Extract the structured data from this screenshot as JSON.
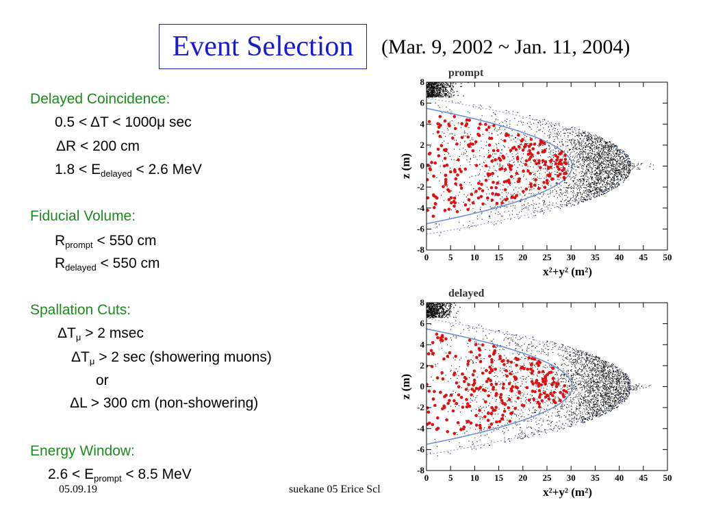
{
  "slide": {
    "title": "Event Selection",
    "date_range": "(Mar. 9, 2002 ~ Jan. 11, 2004)",
    "footer_date": "05.09.19",
    "footer_author": "suekane 05 Erice Scl"
  },
  "sections": [
    {
      "heading": "Delayed Coincidence:"
    },
    {
      "heading": "Fiducial Volume:"
    },
    {
      "heading": "Spallation Cuts:"
    },
    {
      "heading": "Energy Window:"
    }
  ],
  "lines": {
    "dc1": "0.5 < ΔT < 1000μ sec",
    "dc2": "ΔR <  200 cm",
    "dc3_pre": "1.8 < E",
    "dc3_sub": "delayed",
    "dc3_post": " < 2.6 MeV",
    "fv1_pre": "R",
    "fv1_sub": "prompt",
    "fv1_post": " < 550 cm",
    "fv2_pre": "R",
    "fv2_sub": "delayed",
    "fv2_post": " < 550 cm",
    "sc1_pre": "ΔT",
    "sc1_sub": "μ",
    "sc1_post": " > 2 msec",
    "sc2_pre": "ΔT",
    "sc2_sub": "μ",
    "sc2_post": " > 2 sec  (showering muons)",
    "sc3": "or",
    "sc4": "ΔL > 300 cm (non-showering)",
    "ew1_pre": "2.6 < E",
    "ew1_sub": "prompt",
    "ew1_post": " < 8.5 MeV"
  },
  "colors": {
    "heading": "#1a8a1a",
    "title": "#1a1ad0",
    "selected_points": "#e01010",
    "background_points": "#000000",
    "cut_curve": "#6a8fd8"
  },
  "chart_data": [
    {
      "type": "scatter",
      "title": "prompt",
      "xlabel": "x²+y² (m²)",
      "ylabel": "z (m)",
      "xlim": [
        0,
        50
      ],
      "ylim": [
        -8,
        8
      ],
      "x_ticks": [
        "0",
        "5",
        "10",
        "15",
        "20",
        "25",
        "30",
        "35",
        "40",
        "45",
        "50"
      ],
      "y_ticks": [
        "8",
        "6",
        "4",
        "2",
        "0",
        "-2",
        "-4",
        "-6",
        "-8"
      ],
      "fiducial_boundary": {
        "r_max": 5.5,
        "description": "x²+y²+z² = 5.5²"
      },
      "detector_boundary": {
        "r_max": 6.5
      },
      "selected_event_count": 260,
      "background_event_count": 3000
    },
    {
      "type": "scatter",
      "title": "delayed",
      "xlabel": "x²+y² (m²)",
      "ylabel": "z (m)",
      "xlim": [
        0,
        50
      ],
      "ylim": [
        -8,
        8
      ],
      "x_ticks": [
        "0",
        "5",
        "10",
        "15",
        "20",
        "25",
        "30",
        "35",
        "40",
        "45",
        "50"
      ],
      "y_ticks": [
        "8",
        "6",
        "4",
        "2",
        "0",
        "-2",
        "-4",
        "-6",
        "-8"
      ],
      "fiducial_boundary": {
        "r_max": 5.5,
        "description": "x²+y²+z² = 5.5²"
      },
      "detector_boundary": {
        "r_max": 6.5
      },
      "selected_event_count": 260,
      "background_event_count": 3000
    }
  ]
}
